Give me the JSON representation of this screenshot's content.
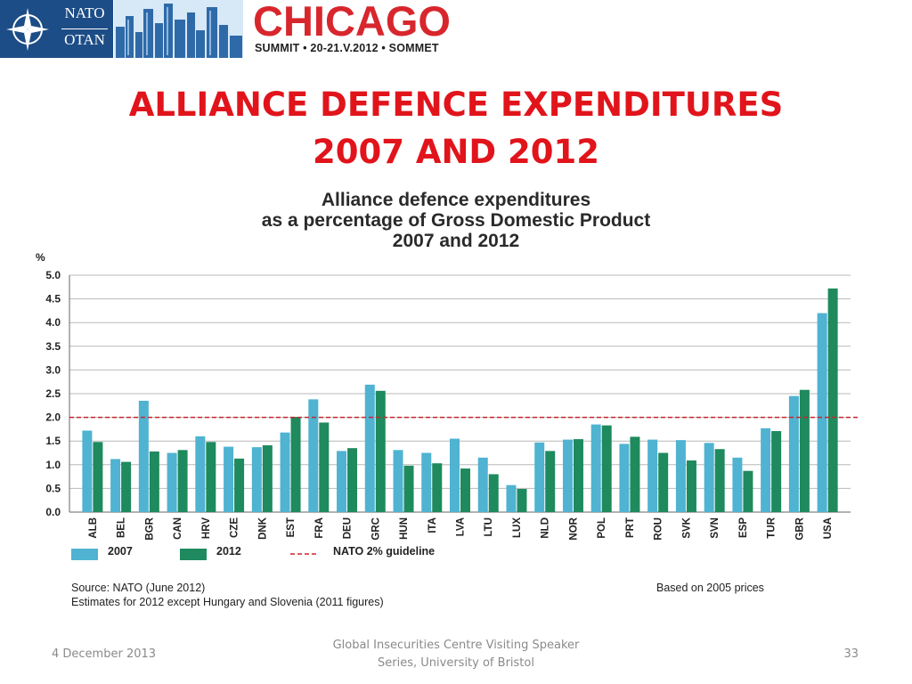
{
  "banner": {
    "nato_line1": "NATO",
    "nato_line2": "OTAN",
    "city": "CHICAGO",
    "summit": "SUMMIT • 20-21.V.2012 • SOMMET"
  },
  "slide": {
    "title_line1": "ALLIANCE DEFENCE EXPENDITURES",
    "title_line2": "2007 AND 2012"
  },
  "chart_data": {
    "type": "bar",
    "title_lines": [
      "Alliance defence expenditures",
      "as a percentage of Gross Domestic Product",
      "2007 and 2012"
    ],
    "ylabel": "%",
    "ylim": [
      0,
      5.0
    ],
    "yticks": [
      "0.0",
      "0.5",
      "1.0",
      "1.5",
      "2.0",
      "2.5",
      "3.0",
      "3.5",
      "4.0",
      "4.5",
      "5.0"
    ],
    "grid": true,
    "categories": [
      "ALB",
      "BEL",
      "BGR",
      "CAN",
      "HRV",
      "CZE",
      "DNK",
      "EST",
      "FRA",
      "DEU",
      "GRC",
      "HUN",
      "ITA",
      "LVA",
      "LTU",
      "LUX",
      "NLD",
      "NOR",
      "POL",
      "PRT",
      "ROU",
      "SVK",
      "SVN",
      "ESP",
      "TUR",
      "GBR",
      "USA"
    ],
    "series": [
      {
        "name": "2007",
        "color": "#4fb3d1",
        "values": [
          1.72,
          1.12,
          2.35,
          1.25,
          1.6,
          1.38,
          1.37,
          1.68,
          2.38,
          1.29,
          2.69,
          1.31,
          1.25,
          1.55,
          1.15,
          0.57,
          1.47,
          1.53,
          1.85,
          1.44,
          1.53,
          1.52,
          1.46,
          1.15,
          1.77,
          2.45,
          4.2
        ]
      },
      {
        "name": "2012",
        "color": "#1e8a5e",
        "values": [
          1.48,
          1.06,
          1.28,
          1.31,
          1.48,
          1.13,
          1.41,
          2.01,
          1.89,
          1.35,
          2.56,
          0.98,
          1.03,
          0.92,
          0.8,
          0.49,
          1.29,
          1.54,
          1.83,
          1.59,
          1.25,
          1.09,
          1.33,
          0.87,
          1.71,
          2.58,
          4.72
        ]
      }
    ],
    "reference_line": {
      "name": "NATO 2% guideline",
      "value": 2.0,
      "color": "#c8262c",
      "style": "dashed"
    },
    "legend_position": "bottom-left"
  },
  "notes": {
    "source": "Source: NATO (June 2012)",
    "estimates": "Estimates for 2012 except Hungary and Slovenia (2011 figures)",
    "prices": "Based on 2005 prices"
  },
  "footer": {
    "date": "4 December 2013",
    "center_line1": "Global Insecurities Centre Visiting Speaker",
    "center_line2": "Series, University of Bristol",
    "page": "33"
  }
}
